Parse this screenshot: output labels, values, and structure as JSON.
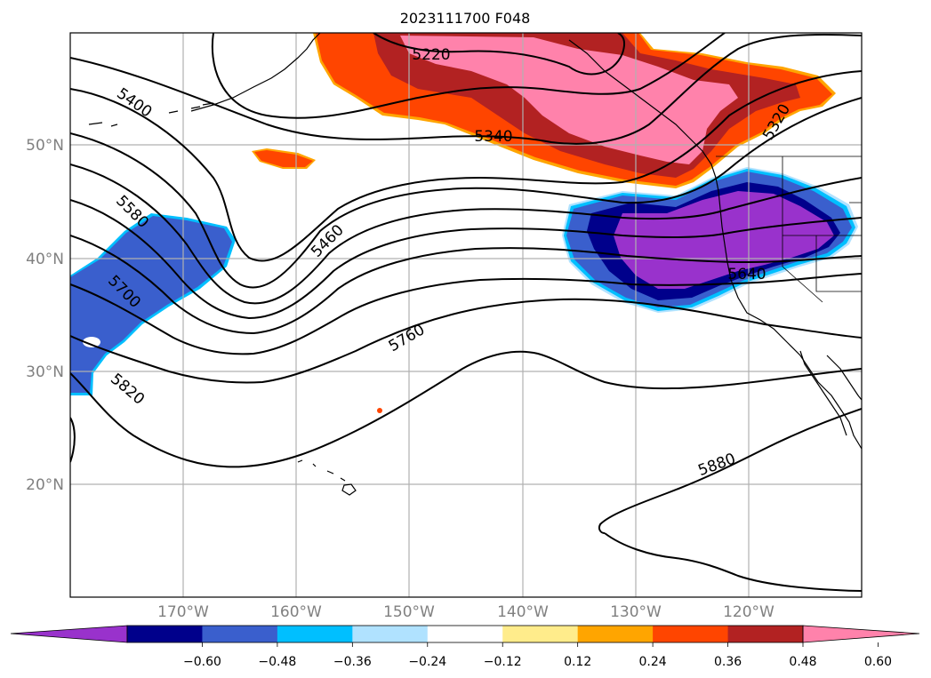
{
  "title": "2023111700 F048",
  "map": {
    "lon_labels": [
      "170°W",
      "160°W",
      "150°W",
      "140°W",
      "130°W",
      "120°W"
    ],
    "lat_labels": [
      "50°N",
      "40°N",
      "30°N",
      "20°N"
    ],
    "contour_labels": [
      "5220",
      "5340",
      "5320",
      "5400",
      "5460",
      "5580",
      "5640",
      "5700",
      "5760",
      "5820",
      "5880"
    ]
  },
  "colorbar": {
    "ticks": [
      "−0.60",
      "−0.48",
      "−0.36",
      "−0.24",
      "−0.12",
      "0.12",
      "0.24",
      "0.36",
      "0.48",
      "0.60"
    ],
    "colors": [
      "#9932cc",
      "#00008b",
      "#3a5fcd",
      "#00bfff",
      "#b0e2ff",
      "#ffffff",
      "#ffec8b",
      "#ffa500",
      "#ff4500",
      "#b22222",
      "#ff82ab"
    ]
  }
}
